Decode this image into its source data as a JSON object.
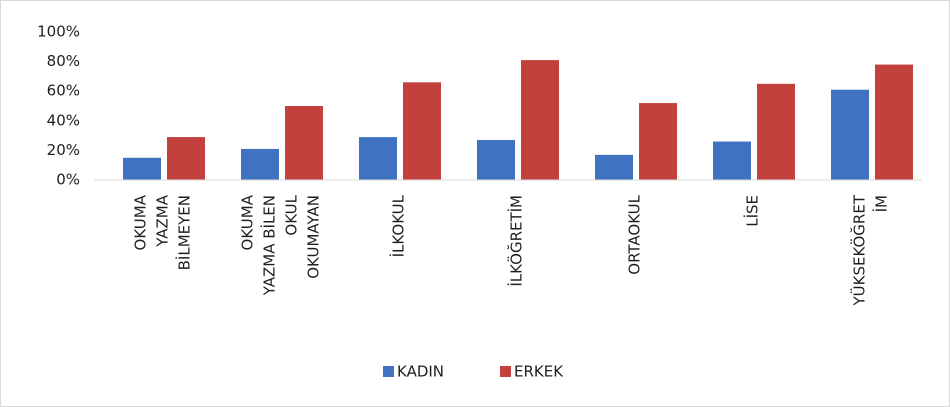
{
  "chart_data": {
    "type": "bar",
    "categories": [
      [
        "OKUMA",
        "YAZMA",
        "BİLMEYEN"
      ],
      [
        "OKUMA",
        "YAZMA BİLEN",
        "OKUL",
        "OKUMAYAN"
      ],
      [
        "İLKOKUL"
      ],
      [
        "İLKÖĞRETİM"
      ],
      [
        "ORTAOKUL"
      ],
      [
        "LİSE"
      ],
      [
        "YÜKSEKÖĞRET",
        "İM"
      ]
    ],
    "series": [
      {
        "name": "KADIN",
        "color": "#3f72c0",
        "values": [
          15,
          21,
          29,
          27,
          17,
          26,
          61
        ]
      },
      {
        "name": "ERKEK",
        "color": "#c2413d",
        "values": [
          29,
          50,
          66,
          81,
          52,
          65,
          78
        ]
      }
    ],
    "ylim": [
      0,
      100
    ],
    "yticks": [
      {
        "value": 0,
        "label": "0%"
      },
      {
        "value": 20,
        "label": "20%"
      },
      {
        "value": 40,
        "label": "40%"
      },
      {
        "value": 60,
        "label": "60%"
      },
      {
        "value": 80,
        "label": "80%"
      },
      {
        "value": 100,
        "label": "100%"
      }
    ],
    "grid": false,
    "legend": "bottom"
  }
}
